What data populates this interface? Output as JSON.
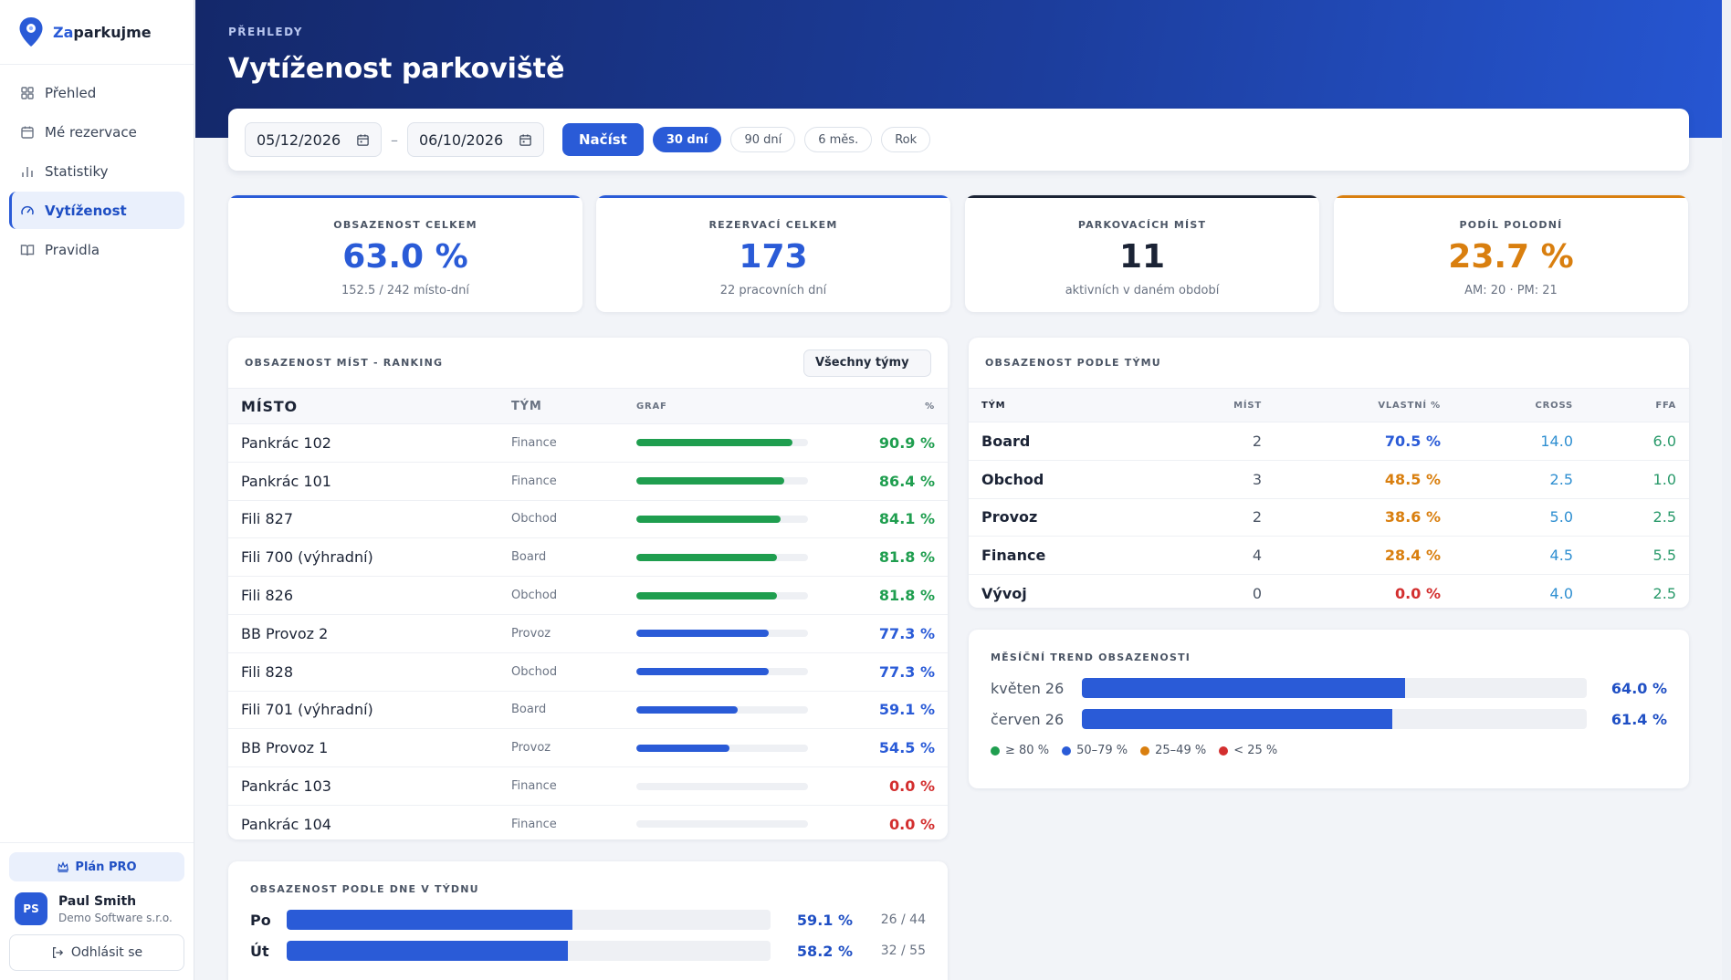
{
  "brand": {
    "name_prefix": "Za",
    "name_suffix": "parkujme"
  },
  "nav": [
    {
      "label": "Přehled",
      "icon": "grid-icon"
    },
    {
      "label": "Mé rezervace",
      "icon": "calendar-icon"
    },
    {
      "label": "Statistiky",
      "icon": "bar-chart-icon"
    },
    {
      "label": "Vytíženost",
      "icon": "gauge-icon",
      "active": true
    },
    {
      "label": "Pravidla",
      "icon": "book-icon"
    }
  ],
  "sidebar_bottom": {
    "plan_label": "Plán PRO",
    "user_initials": "PS",
    "user_name": "Paul Smith",
    "user_company": "Demo Software s.r.o.",
    "logout_label": "Odhlásit se"
  },
  "header": {
    "eyebrow": "PŘEHLEDY",
    "title": "Vytíženost parkoviště"
  },
  "filters": {
    "date_from": "05/12/2026",
    "date_to": "06/10/2026",
    "separator": "–",
    "load_label": "Načíst",
    "ranges": [
      "30 dní",
      "90 dní",
      "6 měs.",
      "Rok"
    ],
    "active_range": 0
  },
  "kpis": [
    {
      "label": "OBSAZENOST CELKEM",
      "value": "63.0 %",
      "sub": "152.5 / 242 místo-dní",
      "color": "#2a5bd7"
    },
    {
      "label": "REZERVACÍ CELKEM",
      "value": "173",
      "sub": "22 pracovních dní",
      "color": "#2a5bd7"
    },
    {
      "label": "PARKOVACÍCH MÍST",
      "value": "11",
      "sub": "aktivních v daném období",
      "color": "#1b2335"
    },
    {
      "label": "PODÍL POLODNÍ",
      "value": "23.7 %",
      "sub": "AM: 20 · PM: 21",
      "color": "#d97f0f"
    }
  ],
  "ranking": {
    "title": "OBSAZENOST MÍST - RANKING",
    "team_filter": "Všechny týmy",
    "columns": [
      "MÍSTO",
      "TÝM",
      "GRAF",
      "%"
    ],
    "rows": [
      {
        "place": "Pankrác 102",
        "team": "Finance",
        "pct": 90.9,
        "label": "90.9 %"
      },
      {
        "place": "Pankrác 101",
        "team": "Finance",
        "pct": 86.4,
        "label": "86.4 %"
      },
      {
        "place": "Fili 827",
        "team": "Obchod",
        "pct": 84.1,
        "label": "84.1 %"
      },
      {
        "place": "Fili 700 (výhradní)",
        "team": "Board",
        "pct": 81.8,
        "label": "81.8 %"
      },
      {
        "place": "Fili 826",
        "team": "Obchod",
        "pct": 81.8,
        "label": "81.8 %"
      },
      {
        "place": "BB Provoz 2",
        "team": "Provoz",
        "pct": 77.3,
        "label": "77.3 %"
      },
      {
        "place": "Fili 828",
        "team": "Obchod",
        "pct": 77.3,
        "label": "77.3 %"
      },
      {
        "place": "Fili 701 (výhradní)",
        "team": "Board",
        "pct": 59.1,
        "label": "59.1 %"
      },
      {
        "place": "BB Provoz 1",
        "team": "Provoz",
        "pct": 54.5,
        "label": "54.5 %"
      },
      {
        "place": "Pankrác 103",
        "team": "Finance",
        "pct": 0.0,
        "label": "0.0 %"
      },
      {
        "place": "Pankrác 104",
        "team": "Finance",
        "pct": 0.0,
        "label": "0.0 %"
      }
    ]
  },
  "team_table": {
    "title": "OBSAZENOST PODLE TÝMU",
    "columns": [
      "TÝM",
      "MÍST",
      "VLASTNÍ %",
      "CROSS",
      "FFA"
    ],
    "rows": [
      {
        "team": "Board",
        "mist": "2",
        "vlastni": "70.5 %",
        "pct": 70.5,
        "cross": "14.0",
        "ffa": "6.0"
      },
      {
        "team": "Obchod",
        "mist": "3",
        "vlastni": "48.5 %",
        "pct": 48.5,
        "cross": "2.5",
        "ffa": "1.0"
      },
      {
        "team": "Provoz",
        "mist": "2",
        "vlastni": "38.6 %",
        "pct": 38.6,
        "cross": "5.0",
        "ffa": "2.5"
      },
      {
        "team": "Finance",
        "mist": "4",
        "vlastni": "28.4 %",
        "pct": 28.4,
        "cross": "4.5",
        "ffa": "5.5"
      },
      {
        "team": "Vývoj",
        "mist": "0",
        "vlastni": "0.0 %",
        "pct": 0.0,
        "cross": "4.0",
        "ffa": "2.5"
      }
    ]
  },
  "trend": {
    "title": "MĚSÍČNÍ TREND OBSAZENOSTI",
    "rows": [
      {
        "month": "květen 26",
        "pct": 64.0,
        "label": "64.0 %"
      },
      {
        "month": "červen 26",
        "pct": 61.4,
        "label": "61.4 %"
      }
    ],
    "legend": [
      {
        "label": "≥ 80 %",
        "color": "#1f9e4f"
      },
      {
        "label": "50–79 %",
        "color": "#2a5bd7"
      },
      {
        "label": "25–49 %",
        "color": "#d97f0f"
      },
      {
        "label": "< 25 %",
        "color": "#d32f2f"
      }
    ]
  },
  "weekday": {
    "title": "OBSAZENOST PODLE DNE V TÝDNU",
    "rows": [
      {
        "day": "Po",
        "pct": 59.1,
        "label": "59.1 %",
        "count": "26 / 44"
      },
      {
        "day": "Út",
        "pct": 58.2,
        "label": "58.2 %",
        "count": "32 / 55"
      }
    ]
  },
  "colors": {
    "high": "#1f9e4f",
    "mid": "#2a5bd7",
    "low": "#d97f0f",
    "zero": "#d32f2f"
  }
}
